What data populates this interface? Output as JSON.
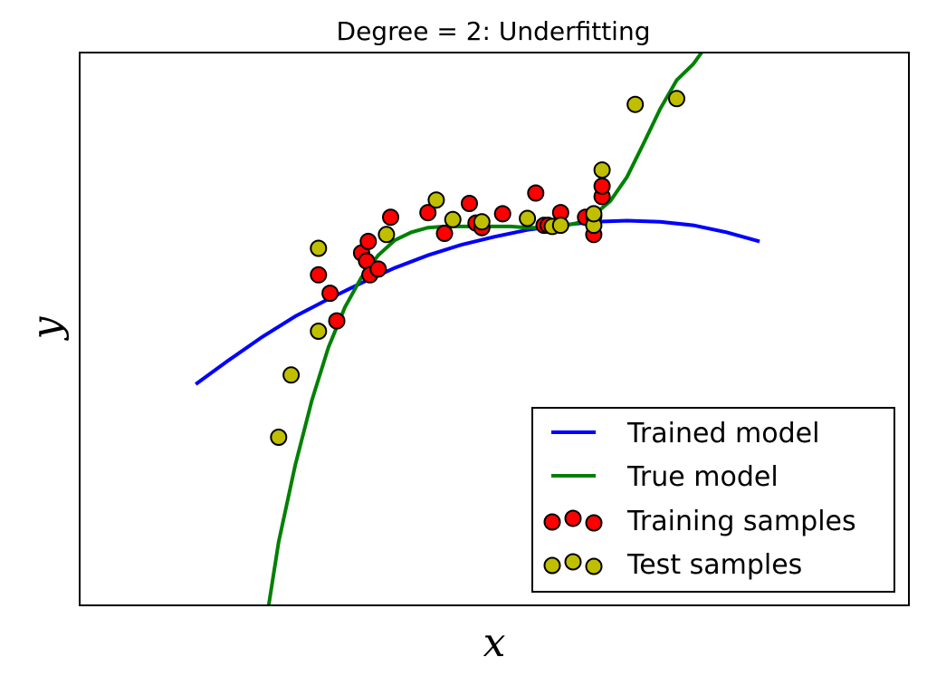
{
  "chart_data": {
    "type": "scatter",
    "title": "Degree = 2: Underfitting",
    "xlabel": "x",
    "ylabel": "y",
    "xlim": [
      0,
      1
    ],
    "ylim": [
      -3.3,
      1.5
    ],
    "ticks_visible": false,
    "grid": false,
    "legend_position": "lower-right",
    "legend": [
      {
        "label": "Trained model",
        "kind": "line",
        "color": "#0000ff"
      },
      {
        "label": "True model",
        "kind": "line",
        "color": "#008000"
      },
      {
        "label": "Training samples",
        "kind": "marker",
        "color": "#ff0000"
      },
      {
        "label": "Test samples",
        "kind": "marker",
        "color": "#bfbf00"
      }
    ],
    "series": [
      {
        "name": "Trained model",
        "kind": "line",
        "color": "#0000ff",
        "x": [
          0.14,
          0.18,
          0.22,
          0.26,
          0.3,
          0.34,
          0.38,
          0.42,
          0.46,
          0.5,
          0.54,
          0.58,
          0.62,
          0.66,
          0.7,
          0.74,
          0.78,
          0.82
        ],
        "y": [
          -1.38,
          -1.17,
          -0.97,
          -0.79,
          -0.64,
          -0.5,
          -0.37,
          -0.26,
          -0.17,
          -0.1,
          -0.04,
          0.0,
          0.03,
          0.04,
          0.03,
          0.0,
          -0.06,
          -0.14
        ]
      },
      {
        "name": "True model",
        "kind": "line",
        "color": "#008000",
        "x": [
          0.228,
          0.24,
          0.26,
          0.28,
          0.3,
          0.32,
          0.34,
          0.36,
          0.38,
          0.4,
          0.42,
          0.44,
          0.46,
          0.48,
          0.5,
          0.52,
          0.54,
          0.56,
          0.58,
          0.6,
          0.62,
          0.64,
          0.66,
          0.68,
          0.7,
          0.72,
          0.74,
          0.75
        ],
        "y": [
          -3.3,
          -2.75,
          -2.08,
          -1.52,
          -1.06,
          -0.71,
          -0.45,
          -0.26,
          -0.13,
          -0.06,
          -0.02,
          -0.01,
          -0.01,
          -0.01,
          -0.01,
          -0.01,
          -0.02,
          -0.02,
          -0.01,
          0.02,
          0.09,
          0.21,
          0.42,
          0.71,
          1.01,
          1.26,
          1.4,
          1.5
        ]
      },
      {
        "name": "Training samples",
        "kind": "scatter",
        "color": "#ff0000",
        "x": [
          0.288,
          0.302,
          0.31,
          0.34,
          0.346,
          0.348,
          0.35,
          0.36,
          0.375,
          0.42,
          0.44,
          0.47,
          0.478,
          0.485,
          0.51,
          0.55,
          0.56,
          0.565,
          0.58,
          0.61,
          0.62,
          0.62,
          0.63,
          0.63
        ],
        "y": [
          -0.43,
          -0.59,
          -0.83,
          -0.24,
          -0.31,
          -0.14,
          -0.43,
          -0.38,
          0.07,
          0.11,
          -0.07,
          0.19,
          0.02,
          -0.02,
          0.1,
          0.28,
          0.0,
          0.0,
          0.11,
          0.07,
          -0.08,
          0.08,
          0.25,
          0.34
        ],
        "note": "approximate reading; points overlap heavily"
      },
      {
        "name": "Test samples",
        "kind": "scatter",
        "color": "#bfbf00",
        "x": [
          0.24,
          0.255,
          0.288,
          0.288,
          0.37,
          0.43,
          0.45,
          0.485,
          0.54,
          0.57,
          0.58,
          0.62,
          0.62,
          0.63,
          0.67,
          0.72
        ],
        "y": [
          -1.84,
          -1.3,
          -0.92,
          -0.2,
          -0.08,
          0.22,
          0.05,
          0.03,
          0.06,
          -0.01,
          0.0,
          0.0,
          0.1,
          0.48,
          1.05,
          1.1
        ]
      }
    ]
  }
}
